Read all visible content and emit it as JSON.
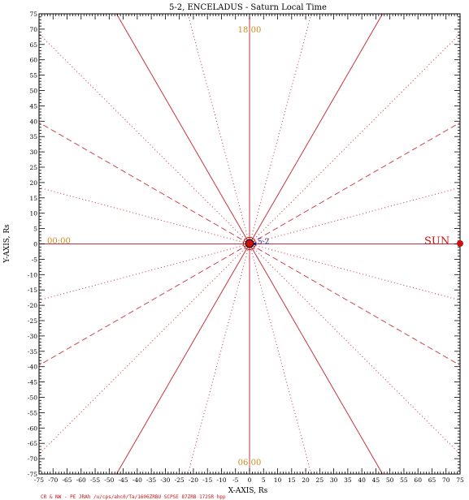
{
  "chart_data": {
    "type": "line",
    "title": "5-2, ENCELADUS - Saturn Local Time",
    "xlabel": "X-AXIS, Rs",
    "ylabel": "Y-AXIS, Rs",
    "xlim": [
      -75,
      75
    ],
    "ylim": [
      -75,
      75
    ],
    "tick_step": 5,
    "x_ticks": [
      "-75",
      "-70",
      "-65",
      "-60",
      "-55",
      "-50",
      "-45",
      "-40",
      "-35",
      "-30",
      "-25",
      "-20",
      "-15",
      "-10",
      "-5",
      "0",
      "5",
      "10",
      "15",
      "20",
      "25",
      "30",
      "35",
      "40",
      "45",
      "50",
      "55",
      "60",
      "65",
      "70",
      "75"
    ],
    "y_ticks": [
      "75",
      "70",
      "65",
      "60",
      "55",
      "50",
      "45",
      "40",
      "35",
      "30",
      "25",
      "20",
      "15",
      "10",
      "5",
      "0",
      "-5",
      "-10",
      "-15",
      "-20",
      "-25",
      "-30",
      "-35",
      "-40",
      "-45",
      "-50",
      "-55",
      "-60",
      "-65",
      "-70",
      "-75"
    ],
    "local_time_labels": [
      {
        "text": "18:00",
        "direction": "+y"
      },
      {
        "text": "00:00",
        "direction": "-x"
      },
      {
        "text": "06:00",
        "direction": "-y"
      }
    ],
    "sun_label": "SUN",
    "spacecraft_label": "5-2",
    "spacecraft_position": {
      "x": 2,
      "y": 0
    },
    "radial_line_groups": [
      {
        "style": "solid",
        "angles_deg": [
          0,
          60,
          90,
          120,
          180,
          240,
          270,
          300
        ]
      },
      {
        "style": "dashed",
        "angles_deg": [
          30,
          150,
          210,
          330
        ]
      },
      {
        "style": "dotted",
        "angles_deg": [
          15,
          45,
          75,
          105,
          135,
          165,
          195,
          225,
          255,
          285,
          315,
          345
        ]
      }
    ],
    "grid": false,
    "colors": {
      "radial": "#c8333f",
      "local_time_label": "#d08a1f",
      "saturn": "#cc1111",
      "sun": "#cc1111",
      "spacecraft": "#1a1a8c"
    }
  },
  "footer_text": "CR & NW - PE JRAh /u/cps/ahc0/Ta/1606ZRBU SCPSE 87ZRB 1725R hpp"
}
